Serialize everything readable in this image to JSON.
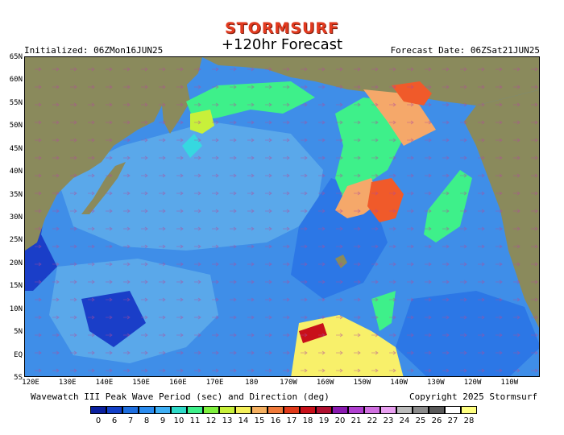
{
  "header": {
    "brand": "STORMSURF",
    "title": "+120hr Forecast",
    "initialized": "Initialized: 06ZMon16JUN25",
    "forecast_date": "Forecast Date: 06ZSat21JUN25"
  },
  "footer": {
    "variable": "Wavewatch III Peak Wave Period (sec) and Direction (deg)",
    "copyright": "Copyright 2025 Stormsurf"
  },
  "lat_labels": [
    "65N",
    "60N",
    "55N",
    "50N",
    "45N",
    "40N",
    "35N",
    "30N",
    "25N",
    "20N",
    "15N",
    "10N",
    "5N",
    "EQ",
    "5S"
  ],
  "lon_labels": [
    "120E",
    "130E",
    "140E",
    "150E",
    "160E",
    "170E",
    "180",
    "170W",
    "160W",
    "150W",
    "140W",
    "130W",
    "120W",
    "110W"
  ],
  "legend": {
    "values": [
      "0",
      "6",
      "7",
      "8",
      "9",
      "10",
      "11",
      "12",
      "13",
      "14",
      "15",
      "16",
      "17",
      "18",
      "19",
      "20",
      "21",
      "22",
      "23",
      "24",
      "25",
      "26",
      "27",
      "28"
    ],
    "colors": [
      "#0a1f9e",
      "#1340c8",
      "#1f6fe0",
      "#2b8cef",
      "#3fb0f5",
      "#2fdac8",
      "#3ef08a",
      "#7ff03e",
      "#c8f03a",
      "#f5f05a",
      "#f5b060",
      "#f07a3a",
      "#e03a1a",
      "#c8101a",
      "#b01030",
      "#8a1ab0",
      "#b040d0",
      "#d070e0",
      "#e8a0f0",
      "#bdbdbd",
      "#8c8c8c",
      "#5a5a5a",
      "#ffffff",
      "#ffff80"
    ]
  },
  "map_colors": {
    "ocean_light": "#5aa8ea",
    "ocean_mid": "#3f8ee8",
    "ocean_blue": "#2c77e6",
    "ocean_deep": "#1a3ec8",
    "land": "#8a8a5c",
    "green": "#4ad36a",
    "lime": "#c8f03a",
    "orange": "#f5a86a",
    "red": "#f05a2a",
    "yellow": "#f8f06a",
    "cyan": "#36d8e0"
  }
}
